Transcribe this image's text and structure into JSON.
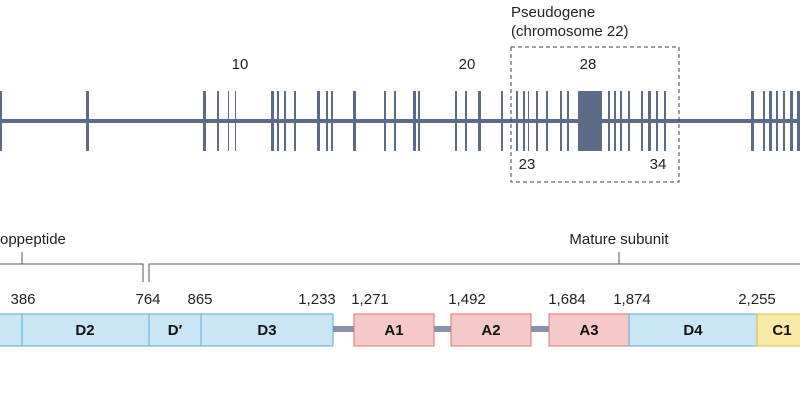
{
  "gene": {
    "exon_labels": [
      "10",
      "20",
      "28",
      "23",
      "34"
    ],
    "pseudogene_title": "Pseudogene",
    "pseudogene_subtitle": "(chromosome 22)"
  },
  "protein": {
    "propeptide_label": "oppeptide",
    "mature_label": "Mature subunit",
    "positions": [
      "386",
      "764",
      "865",
      "1,233",
      "1,271",
      "1,492",
      "1,684",
      "1,874",
      "2,255"
    ],
    "domains": [
      "D2",
      "D′",
      "D3",
      "A1",
      "A2",
      "A3",
      "D4",
      "C1"
    ]
  },
  "colors": {
    "gene_line": "#5b6b88",
    "d_domain": "#c9e6f6",
    "d_domain_border": "#5aaad6",
    "a_domain": "#f6c9c9",
    "a_domain_border": "#e07070",
    "c_domain": "#fbe8a6",
    "c_domain_border": "#e2b94a",
    "linker": "#8792ab"
  }
}
